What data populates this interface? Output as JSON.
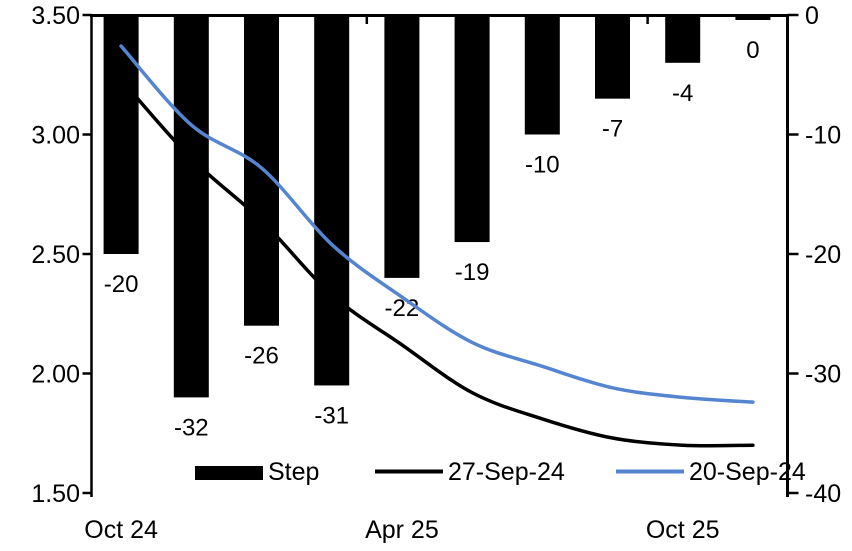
{
  "chart_data": {
    "type": "bar+line combo",
    "title": "",
    "n_categories": 10,
    "bar_series": {
      "name": "Step",
      "axis": "right",
      "color": "#000000",
      "values": [
        -20,
        -32,
        -26,
        -31,
        -22,
        -19,
        -10,
        -7,
        -4,
        0
      ],
      "labels": [
        "-20",
        "-32",
        "-26",
        "-31",
        "-22",
        "-19",
        "-10",
        "-7",
        "-4",
        "0"
      ]
    },
    "line_series": [
      {
        "name": "27-Sep-24",
        "axis": "left",
        "color": "#000000",
        "values": [
          3.23,
          2.9,
          2.64,
          2.33,
          2.12,
          1.92,
          1.81,
          1.73,
          1.7,
          1.7
        ]
      },
      {
        "name": "20-Sep-24",
        "axis": "left",
        "color": "#5585D1",
        "values": [
          3.37,
          3.04,
          2.86,
          2.54,
          2.32,
          2.13,
          2.03,
          1.94,
          1.9,
          1.88
        ]
      }
    ],
    "left_axis": {
      "min": 1.5,
      "max": 3.5,
      "ticks": [
        "3.50",
        "3.00",
        "2.50",
        "2.00",
        "1.50"
      ]
    },
    "right_axis": {
      "min": -40,
      "max": 0,
      "ticks": [
        "0",
        "-10",
        "-20",
        "-30",
        "-40"
      ]
    },
    "x_axis": {
      "labels": [
        {
          "text": "Oct 24",
          "cat": 0
        },
        {
          "text": "Apr 25",
          "cat": 4
        },
        {
          "text": "Oct 25",
          "cat": 8
        }
      ],
      "boundary_tick_cats": [
        4,
        8
      ]
    },
    "legend": [
      {
        "label": "Step",
        "type": "bar"
      },
      {
        "label": "27-Sep-24",
        "type": "line"
      },
      {
        "label": "20-Sep-24",
        "type": "line"
      }
    ],
    "grid": "off",
    "legend_position": "bottom"
  }
}
